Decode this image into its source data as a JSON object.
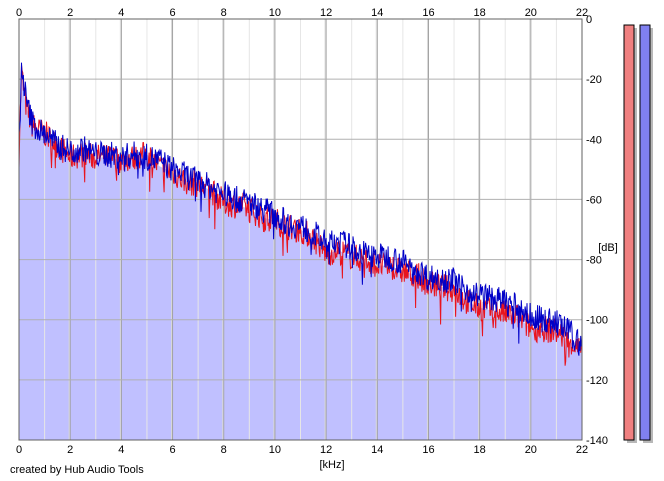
{
  "credit": "created by Hub Audio Tools",
  "colors": {
    "left_channel": "#e8141e",
    "right_channel": "#0000c8",
    "fill": "#c0c0ff",
    "meter_left": "#f08080",
    "meter_right": "#8080f0"
  },
  "chart_data": {
    "type": "line",
    "title": "",
    "xlabel": "[kHz]",
    "ylabel": "[dB]",
    "xlim": [
      0,
      22
    ],
    "ylim": [
      -140,
      0
    ],
    "x_ticks": [
      "0",
      "2",
      "4",
      "6",
      "8",
      "10",
      "12",
      "14",
      "16",
      "18",
      "20",
      "22"
    ],
    "y_ticks": [
      "0",
      "-20",
      "-40",
      "-60",
      "-80",
      "-100",
      "-120",
      "-140"
    ],
    "grid": true,
    "legend": "none",
    "x": [
      0,
      0.1,
      0.2,
      0.3,
      0.5,
      0.75,
      1,
      1.5,
      2,
      2.5,
      3,
      3.5,
      4,
      4.5,
      5,
      5.5,
      6,
      6.5,
      7,
      7.5,
      8,
      8.5,
      9,
      9.5,
      10,
      10.5,
      11,
      11.5,
      12,
      12.5,
      13,
      13.5,
      14,
      14.5,
      15,
      15.5,
      16,
      16.5,
      17,
      17.5,
      18,
      18.5,
      19,
      19.5,
      20,
      20.5,
      21,
      21.5,
      22
    ],
    "series": [
      {
        "values": [
          -45,
          -17,
          -25,
          -30,
          -35,
          -37,
          -38,
          -42,
          -46,
          -45,
          -46,
          -46,
          -47,
          -46,
          -45,
          -49,
          -51,
          -54,
          -55,
          -57,
          -61,
          -62,
          -63,
          -66,
          -67,
          -69,
          -70,
          -73,
          -78,
          -77,
          -79,
          -80,
          -82,
          -82,
          -84,
          -85,
          -88,
          -89,
          -90,
          -94,
          -96,
          -97,
          -98,
          -99,
          -103,
          -103,
          -104,
          -107,
          -111
        ]
      },
      {
        "values": [
          -42,
          -16,
          -22,
          -28,
          -34,
          -37,
          -38,
          -42,
          -44,
          -43,
          -45,
          -45,
          -46,
          -45,
          -46,
          -47,
          -50,
          -52,
          -54,
          -56,
          -58,
          -60,
          -61,
          -63,
          -65,
          -68,
          -69,
          -71,
          -75,
          -74,
          -76,
          -78,
          -79,
          -79,
          -81,
          -83,
          -86,
          -86,
          -87,
          -90,
          -92,
          -93,
          -94,
          -96,
          -99,
          -100,
          -101,
          -104,
          -109
        ]
      }
    ],
    "meters": [
      {
        "value": -2
      },
      {
        "value": -2
      }
    ]
  }
}
